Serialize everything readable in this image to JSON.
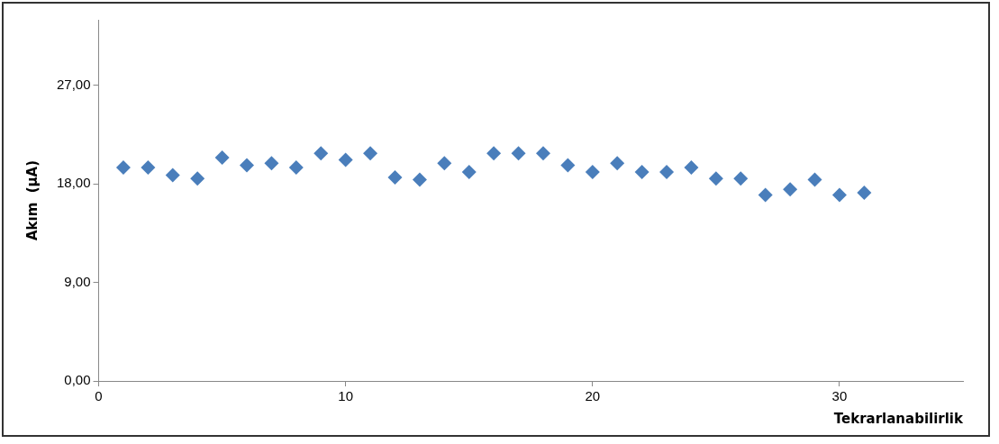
{
  "chart_data": {
    "type": "scatter",
    "xlabel": "Tekrarlanabilirlik",
    "ylabel": "Akım  (µA)",
    "x": [
      1,
      2,
      3,
      4,
      5,
      6,
      7,
      8,
      9,
      10,
      11,
      12,
      13,
      14,
      15,
      16,
      17,
      18,
      19,
      20,
      21,
      22,
      23,
      24,
      25,
      26,
      27,
      28,
      29,
      30,
      31
    ],
    "series": [
      {
        "color": "#4a7ebb",
        "values": [
          19.5,
          19.5,
          18.8,
          18.5,
          20.4,
          19.7,
          19.9,
          19.5,
          20.8,
          20.2,
          20.8,
          18.6,
          18.4,
          19.9,
          19.1,
          20.8,
          20.8,
          20.8,
          19.7,
          19.1,
          19.9,
          19.1,
          19.1,
          19.5,
          18.5,
          18.5,
          17.0,
          17.5,
          18.4,
          17.0,
          17.2
        ]
      }
    ],
    "xlim": [
      0,
      35
    ],
    "xticks": [
      0,
      10,
      20,
      30
    ],
    "ylim": [
      0,
      33
    ],
    "yticks": [
      {
        "value": 0,
        "label": "0,00"
      },
      {
        "value": 9,
        "label": "9,00"
      },
      {
        "value": 18,
        "label": "18,00"
      },
      {
        "value": 27,
        "label": "27,00"
      }
    ],
    "grid": false,
    "legend": false,
    "marker": "diamond"
  }
}
